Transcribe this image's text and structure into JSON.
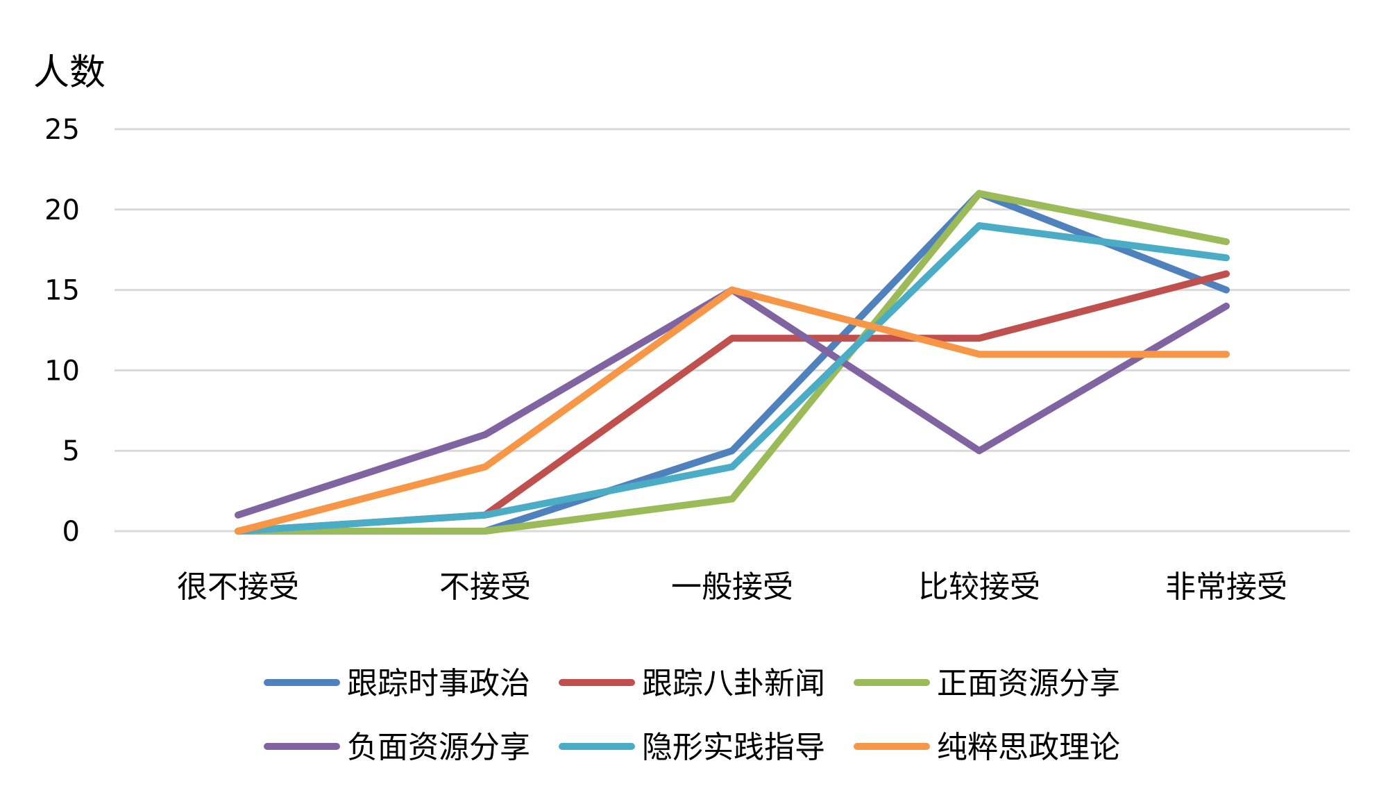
{
  "chart_data": {
    "type": "line",
    "title": "",
    "xlabel": "",
    "ylabel": "人数",
    "ylim": [
      0,
      25
    ],
    "yticks": [
      0,
      5,
      10,
      15,
      20,
      25
    ],
    "grid": true,
    "legend_position": "bottom",
    "categories": [
      "很不接受",
      "不接受",
      "一般接受",
      "比较接受",
      "非常接受"
    ],
    "series": [
      {
        "name": "跟踪时事政治",
        "color": "#4f81bd",
        "values": [
          0,
          0,
          5,
          21,
          15
        ]
      },
      {
        "name": "跟踪八卦新闻",
        "color": "#c0504d",
        "values": [
          0,
          1,
          12,
          12,
          16
        ]
      },
      {
        "name": "正面资源分享",
        "color": "#9bbb59",
        "values": [
          0,
          0,
          2,
          21,
          18
        ]
      },
      {
        "name": "负面资源分享",
        "color": "#8064a2",
        "values": [
          1,
          6,
          15,
          5,
          14
        ]
      },
      {
        "name": "隐形实践指导",
        "color": "#4bacc6",
        "values": [
          0,
          1,
          4,
          19,
          17
        ]
      },
      {
        "name": "纯粹思政理论",
        "color": "#f79646",
        "values": [
          0,
          4,
          15,
          11,
          11
        ]
      }
    ]
  }
}
